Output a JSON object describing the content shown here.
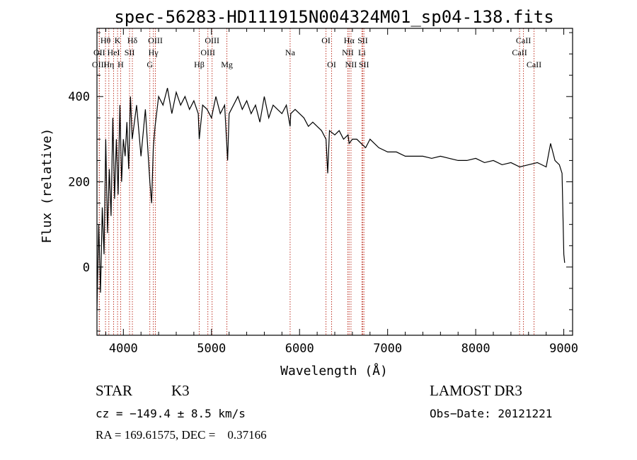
{
  "chart_data": {
    "type": "line",
    "title": "spec-56283-HD111915N004324M01_sp04-138.fits",
    "xlabel": "Wavelength (Å)",
    "ylabel": "Flux (relative)",
    "xlim": [
      3700,
      9100
    ],
    "ylim": [
      -160,
      560
    ],
    "x_ticks": [
      4000,
      5000,
      6000,
      7000,
      8000,
      9000
    ],
    "x_tick_labels": [
      "4000",
      "5000",
      "6000",
      "7000",
      "8000",
      "9000"
    ],
    "y_ticks": [
      0,
      200,
      400
    ],
    "y_tick_labels": [
      "0",
      "200",
      "400"
    ],
    "grid": false,
    "series": [
      {
        "name": "flux",
        "x": [
          3700,
          3720,
          3740,
          3760,
          3780,
          3800,
          3820,
          3840,
          3860,
          3880,
          3900,
          3920,
          3940,
          3960,
          3980,
          4000,
          4020,
          4040,
          4060,
          4080,
          4100,
          4150,
          4200,
          4250,
          4300,
          4320,
          4340,
          4360,
          4400,
          4450,
          4500,
          4550,
          4600,
          4650,
          4700,
          4750,
          4800,
          4850,
          4861,
          4900,
          4950,
          5000,
          5050,
          5100,
          5150,
          5183,
          5200,
          5250,
          5300,
          5350,
          5400,
          5450,
          5500,
          5550,
          5600,
          5650,
          5700,
          5750,
          5800,
          5850,
          5893,
          5900,
          5950,
          6000,
          6050,
          6100,
          6150,
          6200,
          6250,
          6300,
          6320,
          6340,
          6400,
          6450,
          6500,
          6550,
          6563,
          6600,
          6650,
          6700,
          6750,
          6800,
          6900,
          7000,
          7100,
          7200,
          7300,
          7400,
          7500,
          7600,
          7700,
          7800,
          7900,
          8000,
          8100,
          8200,
          8300,
          8400,
          8500,
          8600,
          8700,
          8800,
          8850,
          8900,
          8950,
          8980,
          9000,
          9010
        ],
        "y": [
          -100,
          100,
          -60,
          140,
          30,
          300,
          80,
          230,
          120,
          350,
          160,
          300,
          170,
          380,
          200,
          300,
          260,
          340,
          230,
          400,
          300,
          380,
          260,
          370,
          200,
          150,
          280,
          330,
          400,
          380,
          420,
          360,
          410,
          380,
          400,
          370,
          390,
          360,
          300,
          380,
          370,
          350,
          400,
          360,
          380,
          250,
          360,
          380,
          400,
          370,
          390,
          360,
          380,
          340,
          400,
          350,
          380,
          370,
          360,
          380,
          330,
          360,
          370,
          360,
          350,
          330,
          340,
          330,
          320,
          300,
          220,
          320,
          310,
          320,
          300,
          310,
          290,
          300,
          300,
          290,
          280,
          300,
          280,
          270,
          270,
          260,
          260,
          260,
          255,
          260,
          255,
          250,
          250,
          255,
          245,
          250,
          240,
          245,
          235,
          240,
          245,
          235,
          290,
          250,
          240,
          220,
          30,
          10
        ]
      }
    ],
    "emission_lines": [
      {
        "label": "Hθ",
        "wavelength": 3797,
        "row": 1
      },
      {
        "label": "OII",
        "wavelength": 3727,
        "row": 2
      },
      {
        "label": "OIII",
        "wavelength": 3726,
        "row": 3
      },
      {
        "label": "K",
        "wavelength": 3934,
        "row": 1
      },
      {
        "label": "HeI",
        "wavelength": 3889,
        "row": 2
      },
      {
        "label": "Hη",
        "wavelength": 3835,
        "row": 3
      },
      {
        "label": "H",
        "wavelength": 3969,
        "row": 3
      },
      {
        "label": "Hδ",
        "wavelength": 4102,
        "row": 1
      },
      {
        "label": "SII",
        "wavelength": 4070,
        "row": 2
      },
      {
        "label": "OIII",
        "wavelength": 4363,
        "row": 1
      },
      {
        "label": "Hγ",
        "wavelength": 4340,
        "row": 2
      },
      {
        "label": "G",
        "wavelength": 4300,
        "row": 3
      },
      {
        "label": "Hβ",
        "wavelength": 4861,
        "row": 3
      },
      {
        "label": "OIII",
        "wavelength": 5007,
        "row": 1
      },
      {
        "label": "OIII",
        "wavelength": 4959,
        "row": 2
      },
      {
        "label": "Mg",
        "wavelength": 5175,
        "row": 3
      },
      {
        "label": "Na",
        "wavelength": 5893,
        "row": 2
      },
      {
        "label": "OI",
        "wavelength": 6300,
        "row": 1
      },
      {
        "label": "OI",
        "wavelength": 6364,
        "row": 3
      },
      {
        "label": "Hα",
        "wavelength": 6563,
        "row": 1
      },
      {
        "label": "NII",
        "wavelength": 6548,
        "row": 2
      },
      {
        "label": "NII",
        "wavelength": 6584,
        "row": 3
      },
      {
        "label": "SII",
        "wavelength": 6717,
        "row": 1
      },
      {
        "label": "Li",
        "wavelength": 6708,
        "row": 2
      },
      {
        "label": "SII",
        "wavelength": 6731,
        "row": 3
      },
      {
        "label": "CaII",
        "wavelength": 8542,
        "row": 1
      },
      {
        "label": "CaII",
        "wavelength": 8498,
        "row": 2
      },
      {
        "label": "CaII",
        "wavelength": 8662,
        "row": 3
      }
    ],
    "line_marker_color": "#c0392b"
  },
  "info": {
    "object_class": "STAR",
    "subclass": "K3",
    "survey": "LAMOST DR3",
    "velocity": "cz = −149.4 ± 8.5 km/s",
    "obs_date": "Obs−Date: 20121221",
    "coords": "RA = 169.61575, DEC =    0.37166"
  }
}
